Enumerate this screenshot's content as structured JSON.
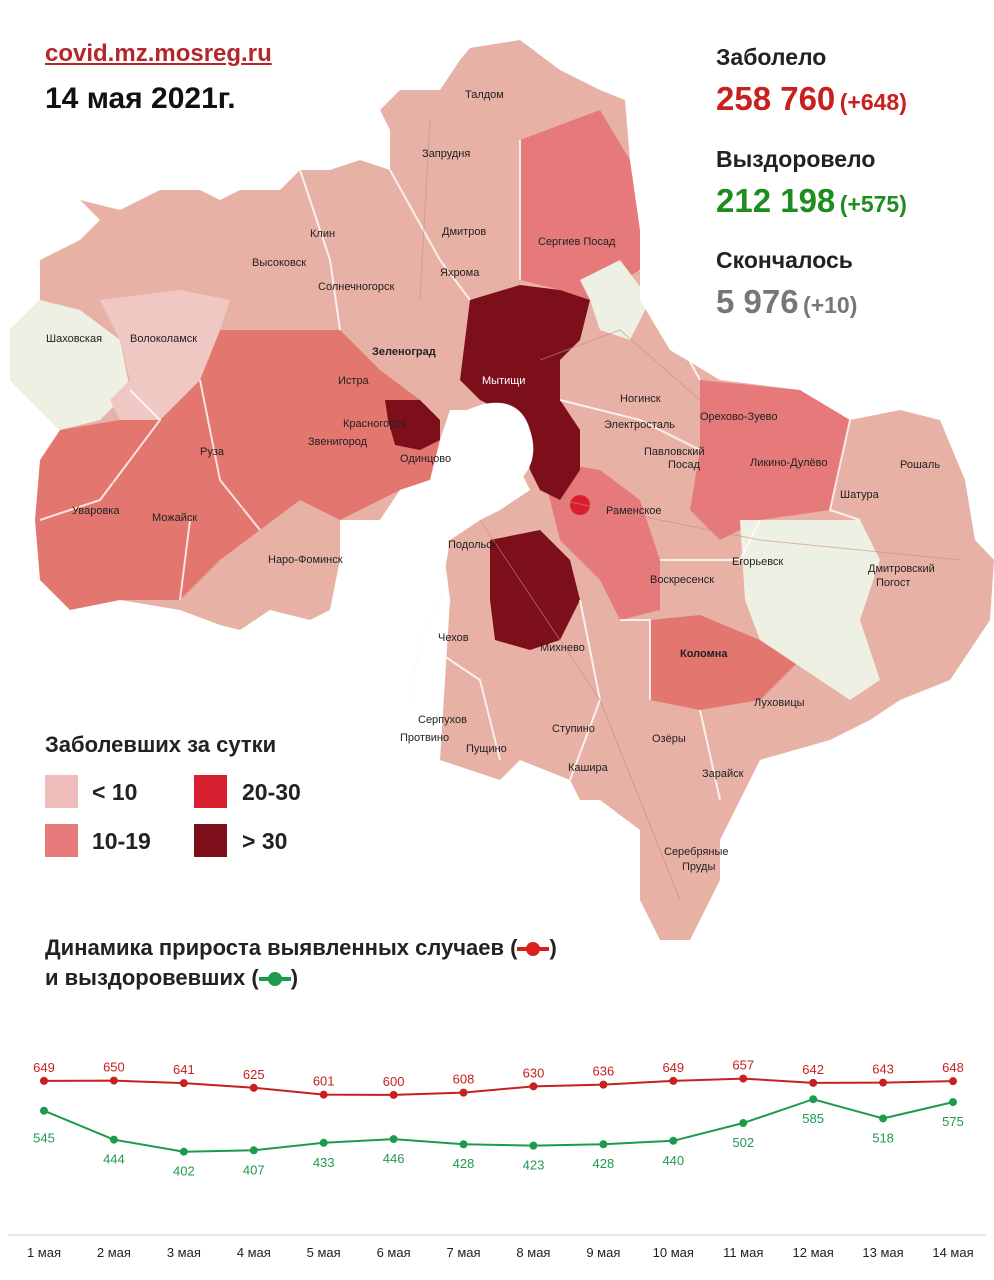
{
  "header": {
    "source": "covid.mz.mosreg.ru",
    "date": "14 мая 2021г."
  },
  "stats": {
    "infected": {
      "label": "Заболело",
      "value": "258 760",
      "delta": "(+648)",
      "color": "#c8201f"
    },
    "recovered": {
      "label": "Выздоровело",
      "value": "212 198",
      "delta": "(+575)",
      "color": "#1e8c1e"
    },
    "died": {
      "label": "Скончалось",
      "value": "5 976",
      "delta": "(+10)",
      "color": "#777777"
    }
  },
  "legend": {
    "title": "Заболевших за сутки",
    "items": [
      {
        "label": "< 10",
        "color": "#efbcbc"
      },
      {
        "label": "20-30",
        "color": "#d81f2f"
      },
      {
        "label": "10-19",
        "color": "#e67a7a"
      },
      {
        "label": "> 30",
        "color": "#7d0f1a"
      }
    ]
  },
  "map": {
    "cities": [
      "Талдом",
      "Запрудня",
      "Клин",
      "Дмитров",
      "Высоковск",
      "Яхрома",
      "Сергиев Посад",
      "Солнечногорск",
      "Шаховская",
      "Волоколамск",
      "Зеленоград",
      "Мытищи",
      "Истра",
      "Красногорск",
      "Ногинск",
      "Орехово-Зуево",
      "Электросталь",
      "Звенигород",
      "Руза",
      "Одинцово",
      "Павловский Посад",
      "Ликино-Дулёво",
      "Рошаль",
      "Уваровка",
      "Можайск",
      "Раменское",
      "Шатура",
      "Наро-Фоминск",
      "Подольск",
      "Воскресенск",
      "Егорьевск",
      "Дмитровский Погост",
      "Чехов",
      "Михнево",
      "Коломна",
      "Серпухов",
      "Ступино",
      "Луховицы",
      "Протвино",
      "Пущино",
      "Озёры",
      "Кашира",
      "Зарайск",
      "Серебряные Пруды"
    ]
  },
  "dynamics": {
    "title_line1": "Динамика прироста выявленных случаев (",
    "title_line1_end": ")",
    "title_line2": "и выздоровевших (",
    "title_line2_end": ")"
  },
  "chart_data": {
    "type": "line",
    "categories": [
      "1 мая",
      "2 мая",
      "3 мая",
      "4 мая",
      "5 мая",
      "6 мая",
      "7 мая",
      "8 мая",
      "9 мая",
      "10 мая",
      "11 мая",
      "12 мая",
      "13 мая",
      "14 мая"
    ],
    "series": [
      {
        "name": "выявленных случаев",
        "color": "#c8201f",
        "values": [
          649,
          650,
          641,
          625,
          601,
          600,
          608,
          630,
          636,
          649,
          657,
          642,
          643,
          648
        ]
      },
      {
        "name": "выздоровевших",
        "color": "#1e9a4f",
        "values": [
          545,
          444,
          402,
          407,
          433,
          446,
          428,
          423,
          428,
          440,
          502,
          585,
          518,
          575
        ]
      }
    ],
    "ylim": [
      380,
      680
    ],
    "grid": false
  }
}
